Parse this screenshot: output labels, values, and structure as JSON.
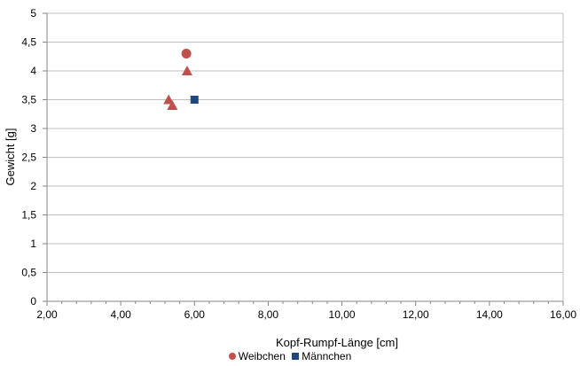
{
  "chart_data": {
    "type": "scatter",
    "xlabel": "Kopf-Rumpf-Länge [cm]",
    "ylabel": "Gewicht  [g]",
    "xlim": [
      2,
      16
    ],
    "ylim": [
      0,
      5
    ],
    "x_ticks": [
      "2,00",
      "4,00",
      "6,00",
      "8,00",
      "10,00",
      "12,00",
      "14,00",
      "16,00"
    ],
    "y_ticks": [
      "0",
      "0,5",
      "1",
      "1,5",
      "2",
      "2,5",
      "3",
      "3,5",
      "4",
      "4,5",
      "5"
    ],
    "grid": "horizontal",
    "legend_position": "bottom",
    "series": [
      {
        "name": "Weibchen",
        "marker": "circle",
        "color": "#c0504d",
        "points": [
          {
            "x": 5.78,
            "y": 4.3
          }
        ]
      },
      {
        "name": "",
        "marker": "triangle",
        "color": "#c0504d",
        "points": [
          {
            "x": 5.8,
            "y": 4.0
          },
          {
            "x": 5.3,
            "y": 3.5
          },
          {
            "x": 5.4,
            "y": 3.4
          }
        ]
      },
      {
        "name": "Männchen",
        "marker": "square",
        "color": "#1f497d",
        "points": [
          {
            "x": 6.0,
            "y": 3.5
          }
        ]
      }
    ]
  },
  "legend": {
    "items": [
      {
        "label": "Weibchen",
        "marker": "circle",
        "color": "#c0504d"
      },
      {
        "label": "Männchen",
        "marker": "square",
        "color": "#1f497d"
      }
    ]
  }
}
